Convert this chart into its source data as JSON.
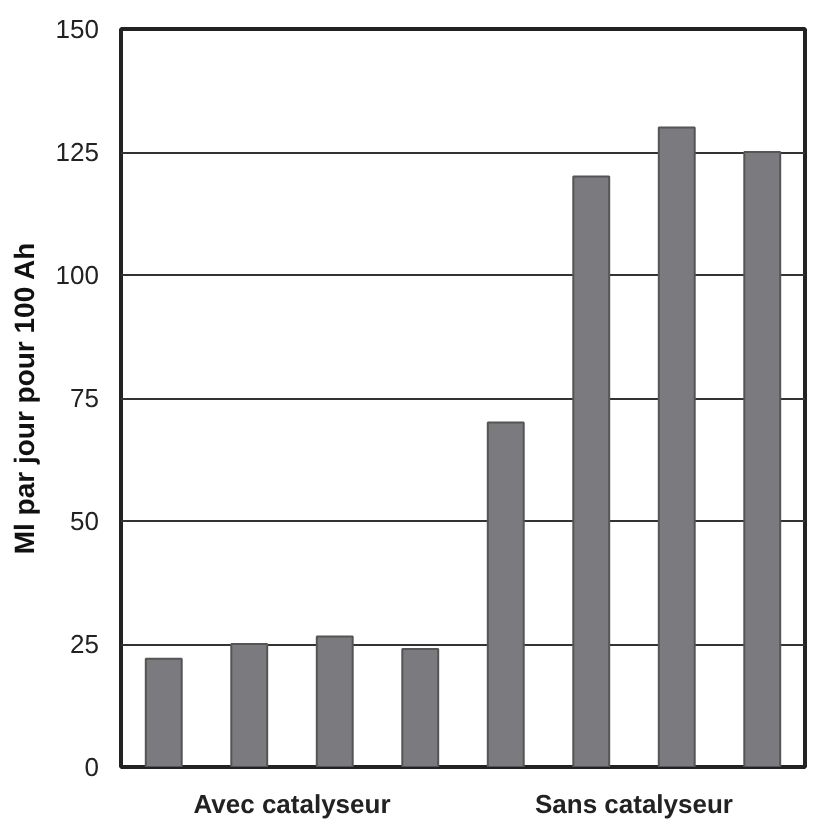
{
  "chart_data": {
    "type": "bar",
    "ylabel": "Ml par jour pour 100 Ah",
    "categories": [
      "Avec catalyseur",
      "Sans catalyseur"
    ],
    "series": [
      {
        "color": "#7b7b7f",
        "values": [
          22,
          70
        ]
      },
      {
        "color": "#7b7b7f",
        "values": [
          25,
          120
        ]
      },
      {
        "color": "#7b7b7f",
        "values": [
          26.5,
          130
        ]
      },
      {
        "color": "#7b7b7f",
        "values": [
          24,
          125
        ]
      }
    ],
    "ylim": [
      0,
      150
    ],
    "yticks": [
      0,
      25,
      50,
      75,
      100,
      125,
      150
    ],
    "grid": "y"
  }
}
